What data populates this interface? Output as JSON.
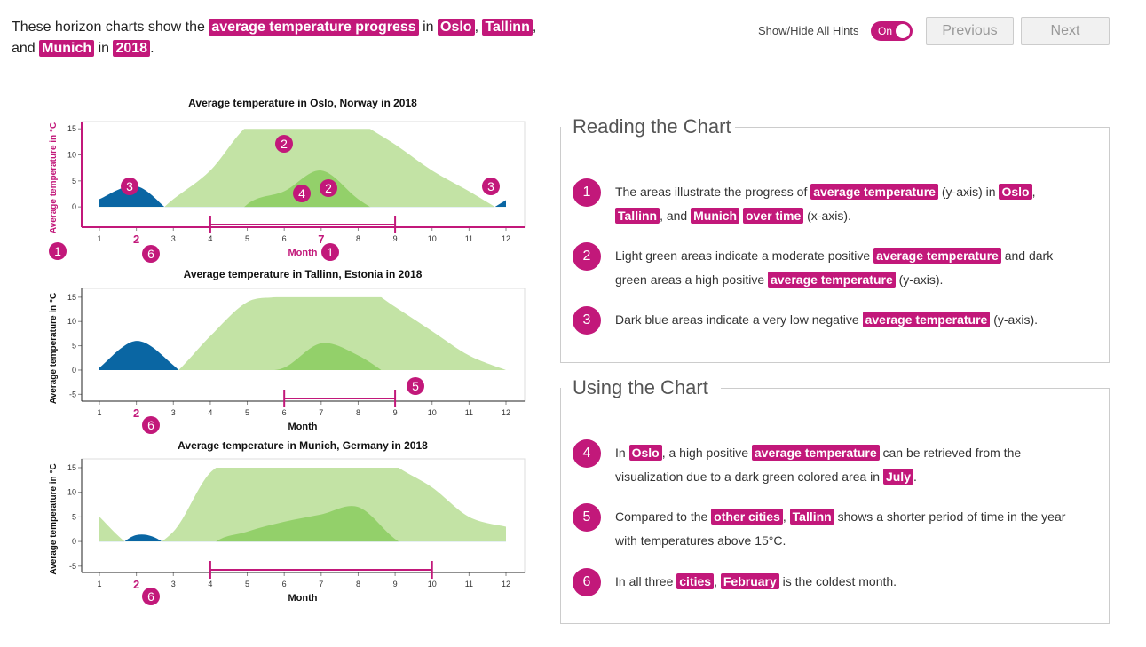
{
  "intro": [
    "These horizon charts show the ",
    {
      "text": "average temperature progress",
      "highlight": true
    },
    " in ",
    {
      "text": "Oslo",
      "highlight": true
    },
    ", ",
    {
      "text": "Tallinn",
      "highlight": true
    },
    ", and ",
    {
      "text": "Munich",
      "highlight": true
    },
    " in ",
    {
      "text": "2018",
      "highlight": true
    },
    "."
  ],
  "controls": {
    "hints_label": "Show/Hide All Hints",
    "toggle": "On",
    "previous": "Previous",
    "next": "Next"
  },
  "chart_data": [
    {
      "type": "horizon",
      "title": "Average temperature in Oslo, Norway in 2018",
      "y_label": "Average temperature in °C",
      "x_label": "Month",
      "x": [
        1,
        2,
        3,
        4,
        5,
        6,
        7,
        8,
        9,
        10,
        11,
        12
      ],
      "values": [
        -1.5,
        -4,
        1.5,
        7,
        15.5,
        18,
        22,
        16.5,
        12,
        7,
        3,
        -1.3
      ],
      "xlim": [
        0.5,
        12.5
      ],
      "xticks": [
        1,
        2,
        3,
        4,
        5,
        6,
        7,
        8,
        9,
        10,
        11,
        12
      ],
      "ylim": [
        -3.9,
        16.4
      ],
      "yticks": [
        0,
        5,
        10,
        15
      ],
      "band": 15,
      "colors": [
        "#c3e3a5",
        "#93d06a",
        "#0a66a3"
      ],
      "axis_color": "#c2187a",
      "highlight_ticks": [
        2,
        7
      ],
      "highlight_range": [
        4,
        9
      ],
      "badges": [
        "3",
        "2",
        "4",
        "2",
        "3",
        "1",
        "6",
        "1"
      ]
    },
    {
      "type": "horizon",
      "title": "Average temperature in Tallinn, Estonia in 2018",
      "y_label": "Average temperature in °C",
      "x_label": "Month",
      "x": [
        1,
        2,
        3,
        4,
        5,
        6,
        7,
        8,
        9,
        10,
        11,
        12
      ],
      "values": [
        -0.5,
        -6,
        -1,
        7,
        14,
        15.5,
        20.5,
        18,
        13,
        8,
        3,
        0
      ],
      "xlim": [
        0.5,
        12.5
      ],
      "xticks": [
        1,
        2,
        3,
        4,
        5,
        6,
        7,
        8,
        9,
        10,
        11,
        12
      ],
      "ylim": [
        -6.4,
        16.8
      ],
      "yticks": [
        -5,
        0,
        5,
        10,
        15
      ],
      "band": 15,
      "colors": [
        "#c3e3a5",
        "#93d06a",
        "#0a66a3"
      ],
      "axis_color": "#222222",
      "highlight_ticks": [
        2
      ],
      "highlight_range": [
        6,
        9
      ],
      "badges": [
        "5",
        "6"
      ]
    },
    {
      "type": "horizon",
      "title": "Average temperature in Munich, Germany in 2018",
      "y_label": "Average temperature in °C",
      "x_label": "Month",
      "x": [
        1,
        2,
        3,
        4,
        5,
        6,
        7,
        8,
        9,
        10,
        11,
        12
      ],
      "values": [
        5,
        -1.3,
        2,
        14,
        17,
        19,
        20.5,
        22,
        15.5,
        11,
        5,
        3
      ],
      "xlim": [
        0.5,
        12.5
      ],
      "xticks": [
        1,
        2,
        3,
        4,
        5,
        6,
        7,
        8,
        9,
        10,
        11,
        12
      ],
      "ylim": [
        -6.3,
        16.8
      ],
      "yticks": [
        -5,
        0,
        5,
        10,
        15
      ],
      "band": 15,
      "colors": [
        "#c3e3a5",
        "#93d06a",
        "#0a66a3"
      ],
      "axis_color": "#222222",
      "highlight_ticks": [
        2
      ],
      "highlight_range": [
        4,
        10
      ],
      "badges": [
        "6"
      ]
    }
  ],
  "panels": [
    {
      "title": "Reading the Chart",
      "items": [
        {
          "badge": "1",
          "segments": [
            "The areas illustrate the progress of ",
            {
              "text": "average temperature",
              "highlight": true
            },
            " (y-axis) in ",
            {
              "text": "Oslo",
              "highlight": true
            },
            ", ",
            {
              "text": "Tallinn",
              "highlight": true
            },
            ", and ",
            {
              "text": "Munich",
              "highlight": true
            },
            " ",
            {
              "text": "over time",
              "highlight": true
            },
            " (x-axis)."
          ]
        },
        {
          "badge": "2",
          "segments": [
            "Light green areas indicate a moderate positive ",
            {
              "text": "average temperature",
              "highlight": true
            },
            " and dark green areas a high positive ",
            {
              "text": "average temperature",
              "highlight": true
            },
            " (y-axis)."
          ]
        },
        {
          "badge": "3",
          "segments": [
            "Dark blue areas indicate a very low negative ",
            {
              "text": "average temperature",
              "highlight": true
            },
            " (y-axis)."
          ]
        }
      ]
    },
    {
      "title": "Using the Chart",
      "items": [
        {
          "badge": "4",
          "segments": [
            "In ",
            {
              "text": "Oslo",
              "highlight": true
            },
            ", a high positive ",
            {
              "text": "average temperature",
              "highlight": true
            },
            " can be retrieved from the visualization due to a dark green colored area in ",
            {
              "text": "July",
              "highlight": true
            },
            "."
          ]
        },
        {
          "badge": "5",
          "segments": [
            "Compared to the ",
            {
              "text": "other cities",
              "highlight": true
            },
            ", ",
            {
              "text": "Tallinn",
              "highlight": true
            },
            " shows a shorter period of time in the year with temperatures above 15°C."
          ]
        },
        {
          "badge": "6",
          "segments": [
            "In all three ",
            {
              "text": "cities",
              "highlight": true
            },
            ", ",
            {
              "text": "February",
              "highlight": true
            },
            " is the coldest month."
          ]
        }
      ]
    }
  ]
}
